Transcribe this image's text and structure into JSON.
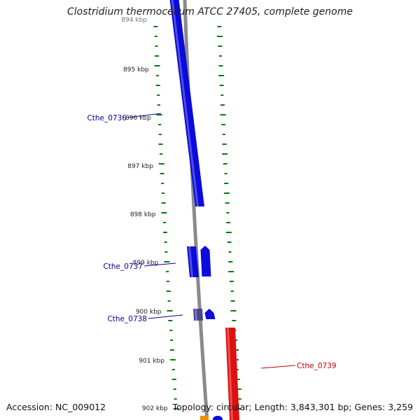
{
  "title": "Clostridium thermocellum ATCC 27405, complete genome",
  "footer": {
    "accession": "Accession: NC_009012",
    "summary": "Topology: circular; Length: 3,843,301 bp; Genes: 3,259"
  },
  "ruler": {
    "labels": [
      "894 kbp",
      "895 kbp",
      "896 kbp",
      "897 kbp",
      "898 kbp",
      "899 kbp",
      "900 kbp",
      "901 kbp",
      "902 kbp"
    ]
  },
  "genes": [
    {
      "name": "Cthe_0736",
      "color": "#0b0bdc"
    },
    {
      "name": "Cthe_0737",
      "color": "#0b0bdc"
    },
    {
      "name": "Cthe_0738",
      "color": "#0b0bdc"
    },
    {
      "name": "Cthe_0739",
      "color": "#e01010"
    }
  ],
  "colors": {
    "forward_gene": "#0b0bdc",
    "reverse_gene": "#e01010",
    "pseudo_gene": "#4a4590",
    "orange_feature": "#f0900a",
    "backbone": "#8a8a8a",
    "gc_ticks": "#0a7a0a",
    "forward_label": "#0000a0",
    "reverse_label": "#c00000"
  }
}
